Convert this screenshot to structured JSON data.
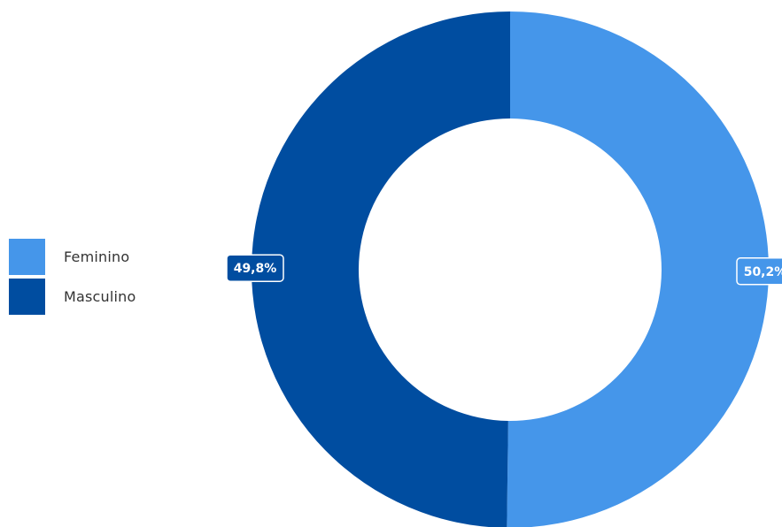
{
  "chart_data": {
    "type": "pie",
    "variant": "donut",
    "categories": [
      "Feminino",
      "Masculino"
    ],
    "values": [
      50.2,
      49.8
    ],
    "data_labels": [
      "50,2%",
      "49,8%"
    ],
    "colors": [
      "#4596EA",
      "#004DA0"
    ],
    "label_text_color": "#FFFFFF",
    "legend_position": "left",
    "title": ""
  }
}
